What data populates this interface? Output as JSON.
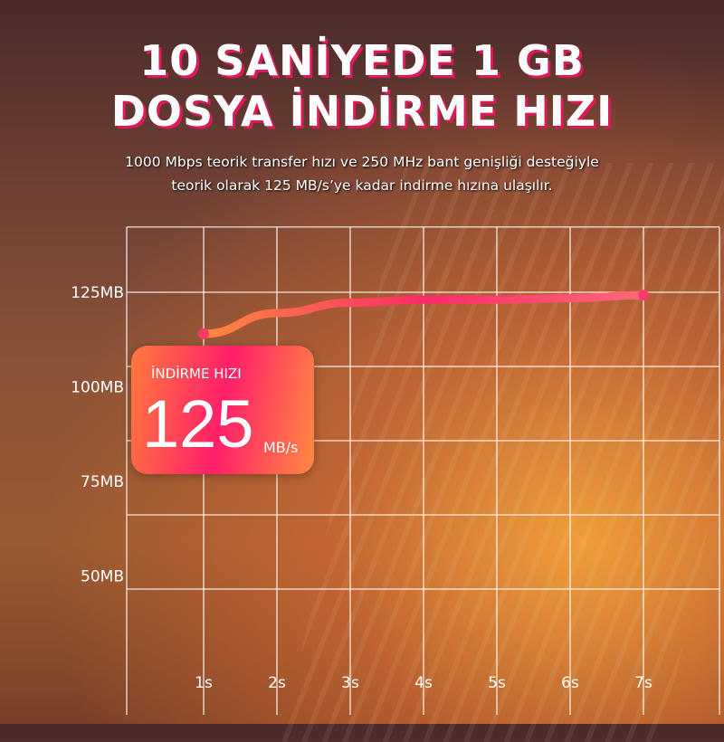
{
  "title_line1": "10 SANİYEDE 1 GB",
  "title_line2": "DOSYA İNDİRME HIZI",
  "subtitle_line1": "1000 Mbps teorik transfer hızı ve 250 MHz bant genişliği desteğiyle",
  "subtitle_line2": "teorik olarak 125 MB/s’ye kadar indirme hızına ulaşılır.",
  "card": {
    "label": "İNDİRME HIZI",
    "value": "125",
    "unit": "MB/s"
  },
  "colors": {
    "accent": "#ff1f6a",
    "line_start": "#ff8a40",
    "line_mid": "#ff2a6a"
  },
  "chart_data": {
    "type": "line",
    "x": [
      "1s",
      "2s",
      "3s",
      "4s",
      "5s",
      "6s",
      "7s"
    ],
    "values": [
      111,
      118,
      121.5,
      122.5,
      122.5,
      123,
      124
    ],
    "y_ticks": [
      "50MB",
      "75MB",
      "100MB",
      "125MB"
    ],
    "ylim": [
      35,
      145
    ],
    "grid": true
  }
}
